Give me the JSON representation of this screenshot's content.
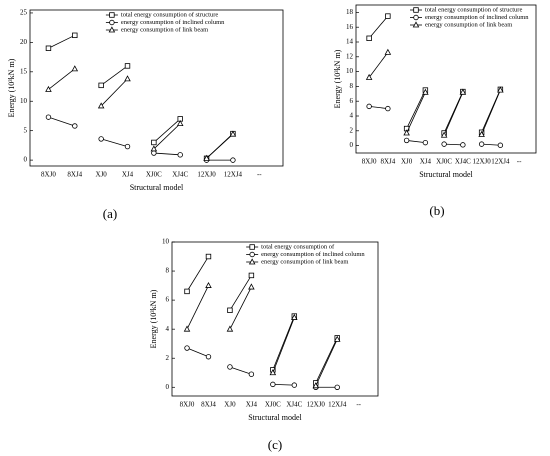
{
  "chart_data": [
    {
      "type": "line",
      "panel": "(a)",
      "x_label": "Structural model",
      "y_label": "Energy (10³kN m)",
      "categories": [
        "8XJ0",
        "8XJ4",
        "XJ0",
        "XJ4",
        "XJ0C",
        "XJ4C",
        "12XJ0",
        "12XJ4",
        "--"
      ],
      "ylim": [
        -1,
        25.5
      ],
      "yticks": [
        0,
        5,
        10,
        15,
        20,
        25
      ],
      "pair_lines": true,
      "legend": "top-right",
      "series": [
        {
          "name": "total energy consumption of structure",
          "color": "#000000",
          "marker": "square",
          "values": [
            19,
            21.2,
            12.7,
            16,
            3,
            7,
            0.3,
            4.5,
            null
          ]
        },
        {
          "name": "energy consumption of inclined column",
          "color": "#000000",
          "marker": "circle",
          "values": [
            7.3,
            5.8,
            3.6,
            2.3,
            1.2,
            0.9,
            0,
            0,
            null
          ]
        },
        {
          "name": "energy consumption of link beam",
          "color": "#000000",
          "marker": "triangle",
          "values": [
            12,
            15.5,
            9.2,
            13.8,
            1.9,
            6.2,
            0.3,
            4.4,
            null
          ]
        }
      ]
    },
    {
      "type": "line",
      "panel": "(b)",
      "x_label": "Structural model",
      "y_label": "Energy (10³kN m)",
      "categories": [
        "8XJ0",
        "8XJ4",
        "XJ0",
        "XJ4",
        "XJ0C",
        "XJ4C",
        "12XJ0",
        "12XJ4",
        "--"
      ],
      "ylim": [
        -1,
        19
      ],
      "yticks": [
        0,
        2,
        4,
        6,
        8,
        10,
        12,
        14,
        16,
        18
      ],
      "pair_lines": true,
      "legend": "top-right",
      "series": [
        {
          "name": "total energy consumption of structure",
          "color": "#000000",
          "marker": "square",
          "values": [
            14.5,
            17.5,
            2.3,
            7.5,
            1.7,
            7.3,
            1.8,
            7.6,
            null
          ]
        },
        {
          "name": "energy consumption of inclined column",
          "color": "#000000",
          "marker": "circle",
          "values": [
            5.3,
            5.0,
            0.7,
            0.4,
            0.2,
            0.1,
            0.2,
            0.05,
            null
          ]
        },
        {
          "name": "energy consumption of link beam",
          "color": "#000000",
          "marker": "triangle",
          "values": [
            9.2,
            12.6,
            1.7,
            7.2,
            1.4,
            7.2,
            1.5,
            7.5,
            null
          ]
        }
      ]
    },
    {
      "type": "line",
      "panel": "(c)",
      "x_label": "Structural model",
      "y_label": "Energy (10³kN m)",
      "categories": [
        "8XJ0",
        "8XJ4",
        "XJ0",
        "XJ4",
        "XJ0C",
        "XJ4C",
        "12XJ0",
        "12XJ4",
        "--"
      ],
      "ylim": [
        -0.6,
        10
      ],
      "yticks": [
        0,
        2,
        4,
        6,
        8,
        10
      ],
      "pair_lines": true,
      "legend": "top-right",
      "series": [
        {
          "name": "total energy consumption of",
          "color": "#000000",
          "marker": "square",
          "values": [
            6.6,
            9.0,
            5.3,
            7.7,
            1.2,
            4.9,
            0.3,
            3.4,
            null
          ]
        },
        {
          "name": "energy consumption of inclined column",
          "color": "#000000",
          "marker": "circle",
          "values": [
            2.7,
            2.1,
            1.4,
            0.9,
            0.2,
            0.15,
            0,
            0,
            null
          ]
        },
        {
          "name": "energy consumption of link beam",
          "color": "#000000",
          "marker": "triangle",
          "values": [
            4.0,
            7.0,
            4.0,
            6.9,
            1.0,
            4.8,
            0.1,
            3.3,
            null
          ]
        }
      ]
    }
  ]
}
